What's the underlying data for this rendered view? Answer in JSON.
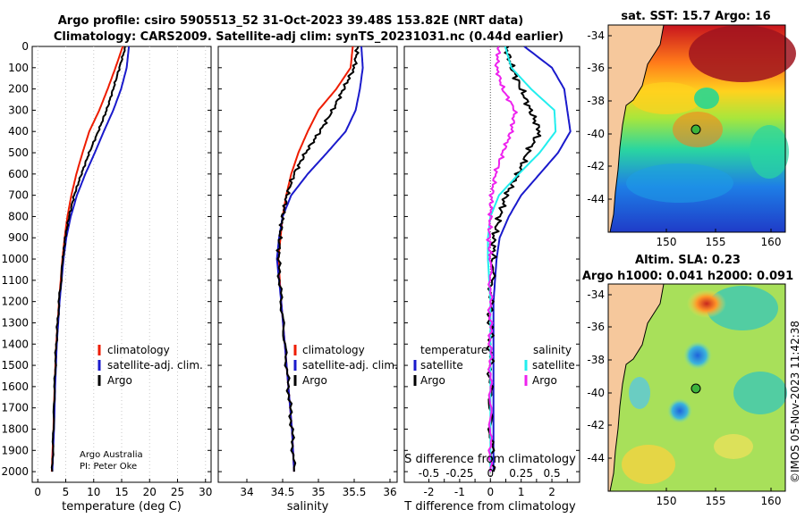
{
  "title": {
    "line1": "Argo profile: csiro 5905513_52 31-Oct-2023 39.48S 153.82E (NRT data)",
    "line2": "Climatology: CARS2009. Satellite-adj clim: synTS_20231031.nc (0.44d earlier)"
  },
  "depth_ticks": [
    0,
    100,
    200,
    300,
    400,
    500,
    600,
    700,
    800,
    900,
    1000,
    1100,
    1200,
    1300,
    1400,
    1500,
    1600,
    1700,
    1800,
    1900,
    2000
  ],
  "credit": {
    "line1": "Argo Australia",
    "line2": "PI: Peter Oke"
  },
  "legend_main": {
    "climatology": "climatology",
    "satellite": "satellite-adj. clim.",
    "argo": "Argo"
  },
  "legend_diff": {
    "temperature_head": "temperature",
    "salinity_head": "salinity",
    "t_satellite": "satellite",
    "t_argo": "Argo",
    "s_satellite": "satellite",
    "s_argo": "Argo"
  },
  "colors": {
    "climatology": "#ee1c00",
    "satellite": "#1a1acc",
    "argo": "#000000",
    "t_sat": "#22eeee",
    "s_sat": "#ee22ee",
    "land": "#f6c89c"
  },
  "maps": {
    "sst_title": "sat. SST: 15.7 Argo: 16",
    "sla_title1": "Altim. SLA: 0.23",
    "sla_title2": "Argo h1000: 0.041 h2000: 0.091",
    "lat_ticks": [
      "-34",
      "-36",
      "-38",
      "-40",
      "-42",
      "-44"
    ],
    "lon_ticks": [
      "150",
      "155",
      "160"
    ],
    "watermark": "©IMOS 05-Nov-2023 11:42:38"
  },
  "chart_data": [
    {
      "type": "line",
      "name": "temperature",
      "xlabel": "temperature (deg C)",
      "xlim": [
        -1,
        31
      ],
      "ylim": [
        0,
        2050
      ],
      "xticks": [
        0,
        5,
        10,
        15,
        20,
        25,
        30
      ],
      "series": [
        {
          "name": "climatology",
          "depth": [
            0,
            100,
            200,
            300,
            400,
            500,
            600,
            700,
            800,
            900,
            1000,
            1200,
            1400,
            1600,
            1800,
            2000
          ],
          "values": [
            15.2,
            13.9,
            12.5,
            11.0,
            9.2,
            8.0,
            6.9,
            6.0,
            5.3,
            4.8,
            4.4,
            3.8,
            3.3,
            3.0,
            2.8,
            2.5
          ]
        },
        {
          "name": "satellite-adj. clim.",
          "depth": [
            0,
            100,
            200,
            300,
            400,
            500,
            600,
            700,
            800,
            900,
            1000,
            1200,
            1400,
            1600,
            1800,
            2000
          ],
          "values": [
            16.3,
            15.9,
            14.9,
            13.5,
            11.8,
            10.2,
            8.5,
            7.0,
            5.9,
            5.1,
            4.6,
            3.9,
            3.4,
            3.1,
            2.9,
            2.6
          ]
        },
        {
          "name": "Argo",
          "depth": [
            0,
            100,
            200,
            300,
            400,
            500,
            600,
            700,
            800,
            900,
            1000,
            1200,
            1400,
            1600,
            1800,
            2000
          ],
          "values": [
            15.7,
            14.6,
            13.5,
            12.3,
            10.8,
            9.2,
            7.8,
            6.5,
            5.6,
            4.9,
            4.5,
            3.8,
            3.3,
            3.0,
            2.8,
            2.6
          ]
        }
      ]
    },
    {
      "type": "line",
      "name": "salinity",
      "xlabel": "salinity",
      "xlim": [
        33.6,
        36.1
      ],
      "ylim": [
        0,
        2050
      ],
      "xticks": [
        34,
        34.5,
        35,
        35.5,
        36
      ],
      "series": [
        {
          "name": "climatology",
          "depth": [
            0,
            100,
            200,
            300,
            400,
            500,
            600,
            700,
            800,
            900,
            1000,
            1200,
            1400,
            1600,
            1800,
            2000
          ],
          "values": [
            35.48,
            35.45,
            35.25,
            35.0,
            34.85,
            34.72,
            34.62,
            34.55,
            34.5,
            34.47,
            34.44,
            34.48,
            34.53,
            34.58,
            34.63,
            34.66
          ]
        },
        {
          "name": "satellite-adj. clim.",
          "depth": [
            0,
            100,
            200,
            300,
            400,
            500,
            600,
            700,
            800,
            900,
            1000,
            1200,
            1400,
            1600,
            1800,
            2000
          ],
          "values": [
            35.6,
            35.62,
            35.58,
            35.52,
            35.38,
            35.12,
            34.85,
            34.62,
            34.5,
            34.45,
            34.42,
            34.48,
            34.53,
            34.58,
            34.63,
            34.66
          ]
        },
        {
          "name": "Argo",
          "depth": [
            0,
            100,
            200,
            300,
            400,
            500,
            600,
            700,
            800,
            900,
            1000,
            1200,
            1400,
            1600,
            1800,
            2000
          ],
          "values": [
            35.55,
            35.5,
            35.35,
            35.2,
            35.02,
            34.82,
            34.66,
            34.56,
            34.5,
            34.46,
            34.44,
            34.48,
            34.53,
            34.58,
            34.63,
            34.66
          ]
        }
      ]
    },
    {
      "type": "line",
      "name": "difference",
      "xlabel": "T difference from climatology",
      "xlim": [
        -2.8,
        2.9
      ],
      "ylim": [
        0,
        2050
      ],
      "xticks": [
        -2,
        -1.5,
        -1,
        -0.5,
        0,
        0.5,
        1,
        1.5,
        2,
        2.5
      ],
      "xticklabels": [
        "-2",
        "-1.5",
        "-1",
        "-0.5",
        "0",
        "0.5",
        "1",
        "1.5",
        "2",
        "2.5"
      ],
      "secondary_xlabel": "S difference from climatology",
      "secondary_xticks": [
        -0.5,
        -0.25,
        0,
        0.25,
        0.5
      ],
      "secondary_xticklabels": [
        "-0.5",
        "-0.25",
        "0",
        "0.25",
        "0.5"
      ],
      "series": [
        {
          "name": "T satellite",
          "depth": [
            0,
            100,
            200,
            300,
            400,
            500,
            600,
            700,
            800,
            900,
            1000,
            1200,
            1400,
            1600,
            1800,
            2000
          ],
          "values": [
            1.1,
            2.0,
            2.4,
            2.5,
            2.6,
            2.2,
            1.6,
            1.0,
            0.6,
            0.3,
            0.2,
            0.1,
            0.1,
            0.1,
            0.1,
            0.1
          ]
        },
        {
          "name": "T Argo",
          "depth": [
            0,
            100,
            200,
            300,
            400,
            500,
            600,
            700,
            800,
            900,
            1000,
            1200,
            1400,
            1600,
            1800,
            2000
          ],
          "values": [
            0.5,
            0.7,
            1.0,
            1.3,
            1.6,
            1.2,
            0.9,
            0.5,
            0.3,
            0.1,
            0.1,
            0.0,
            0.0,
            0.0,
            0.0,
            0.1
          ]
        },
        {
          "name": "S satellite",
          "depth": [
            0,
            100,
            200,
            300,
            400,
            500,
            600,
            700,
            800,
            900,
            1000,
            1200,
            1400,
            1600,
            1800,
            2000
          ],
          "values": [
            0.12,
            0.17,
            0.33,
            0.52,
            0.53,
            0.4,
            0.23,
            0.07,
            0.0,
            -0.02,
            -0.02,
            0.0,
            0.0,
            0.0,
            0.0,
            0.0
          ]
        },
        {
          "name": "S Argo",
          "depth": [
            0,
            100,
            200,
            300,
            400,
            500,
            600,
            700,
            800,
            900,
            1000,
            1200,
            1400,
            1600,
            1800,
            2000
          ],
          "values": [
            0.07,
            0.05,
            0.1,
            0.2,
            0.17,
            0.1,
            0.04,
            0.01,
            0.0,
            -0.01,
            0.0,
            0.0,
            0.0,
            0.0,
            0.0,
            0.0
          ]
        }
      ]
    }
  ]
}
